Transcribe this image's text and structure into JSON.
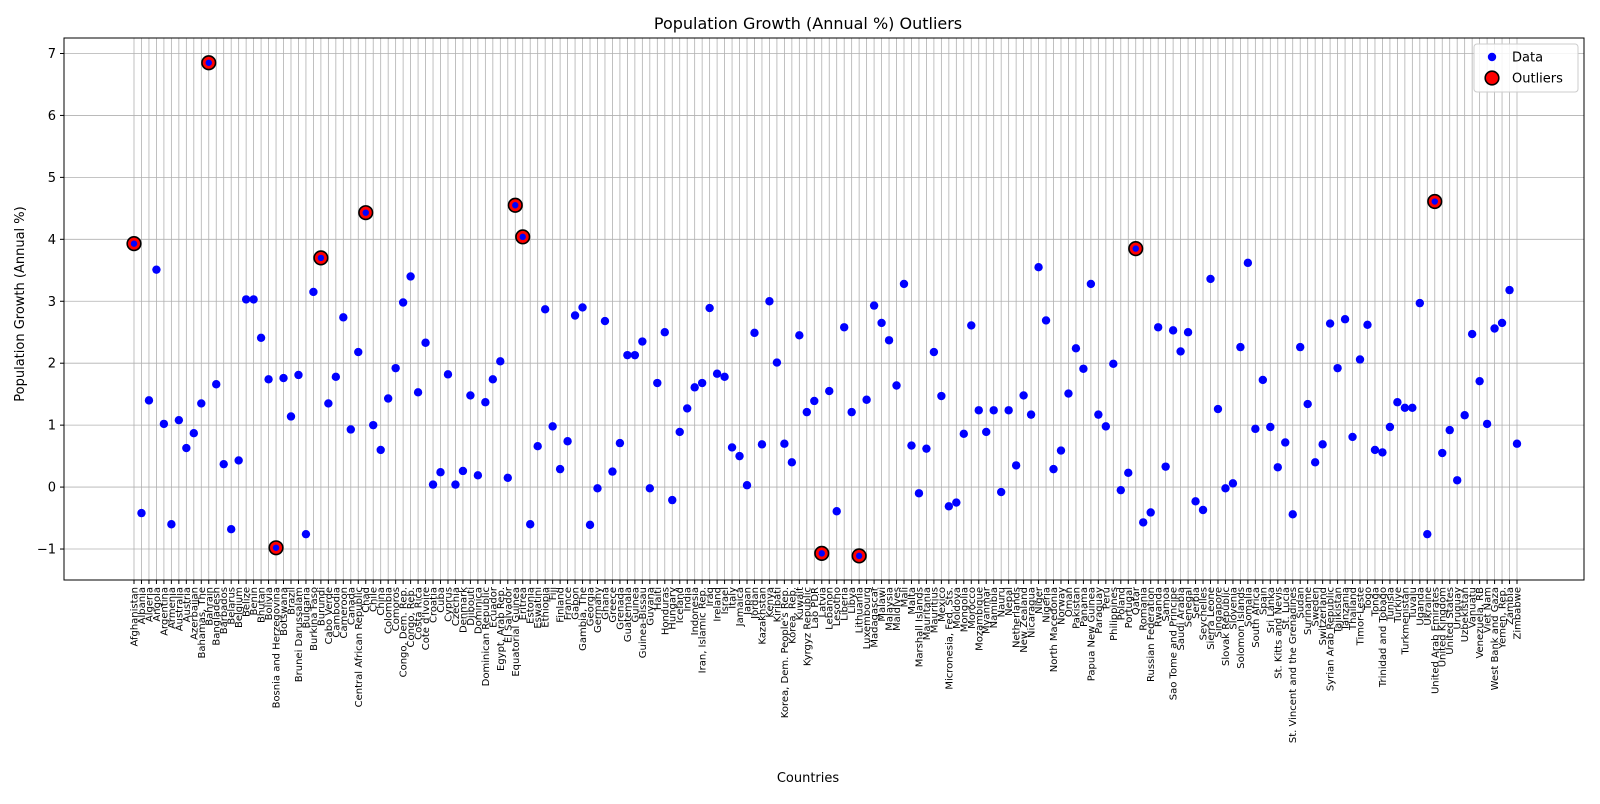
{
  "chart_data": {
    "type": "scatter",
    "title": "Population Growth (Annual %) Outliers",
    "xlabel": "Countries",
    "ylabel": "Population Growth (Annual %)",
    "ylim": [
      -1.5,
      7.25
    ],
    "yticks": [
      -1,
      0,
      1,
      2,
      3,
      4,
      5,
      6,
      7
    ],
    "ytick_labels": [
      "−1",
      "0",
      "1",
      "2",
      "3",
      "4",
      "5",
      "6",
      "7"
    ],
    "grid": true,
    "legend_position": "top-right",
    "legend": [
      "Data",
      "Outliers"
    ],
    "categories": [
      "Afghanistan",
      "Albania",
      "Algeria",
      "Angola",
      "Argentina",
      "Armenia",
      "Australia",
      "Austria",
      "Azerbaijan",
      "Bahamas, The",
      "Bahrain",
      "Bangladesh",
      "Barbados",
      "Belarus",
      "Belgium",
      "Belize",
      "Benin",
      "Bhutan",
      "Bolivia",
      "Bosnia and Herzegovina",
      "Botswana",
      "Brazil",
      "Brunei Darussalam",
      "Bulgaria",
      "Burkina Faso",
      "Burundi",
      "Cabo Verde",
      "Cambodia",
      "Cameroon",
      "Canada",
      "Central African Republic",
      "Chad",
      "Chile",
      "China",
      "Colombia",
      "Comoros",
      "Congo, Dem. Rep.",
      "Congo, Rep.",
      "Costa Rica",
      "Cote d'Ivoire",
      "Croatia",
      "Cuba",
      "Cyprus",
      "Czechia",
      "Denmark",
      "Djibouti",
      "Dominica",
      "Dominican Republic",
      "Ecuador",
      "Egypt, Arab Rep.",
      "El Salvador",
      "Equatorial Guinea",
      "Eritrea",
      "Estonia",
      "Eswatini",
      "Ethiopia",
      "Fiji",
      "Finland",
      "France",
      "Gabon",
      "Gambia, The",
      "Georgia",
      "Germany",
      "Ghana",
      "Greece",
      "Grenada",
      "Guatemala",
      "Guinea",
      "Guinea-Bissau",
      "Guyana",
      "Haiti",
      "Honduras",
      "Hungary",
      "Iceland",
      "India",
      "Indonesia",
      "Iran, Islamic Rep.",
      "Iraq",
      "Ireland",
      "Israel",
      "Italy",
      "Jamaica",
      "Japan",
      "Jordan",
      "Kazakhstan",
      "Kenya",
      "Kiribati",
      "Korea, Dem. People's Rep.",
      "Korea, Rep.",
      "Kuwait",
      "Kyrgyz Republic",
      "Lao PDR",
      "Latvia",
      "Lebanon",
      "Lesotho",
      "Liberia",
      "Libya",
      "Lithuania",
      "Luxembourg",
      "Madagascar",
      "Malawi",
      "Malaysia",
      "Maldives",
      "Mali",
      "Malta",
      "Marshall Islands",
      "Mauritania",
      "Mauritius",
      "Mexico",
      "Micronesia, Fed. Sts.",
      "Moldova",
      "Mongolia",
      "Morocco",
      "Mozambique",
      "Myanmar",
      "Namibia",
      "Nauru",
      "Nepal",
      "Netherlands",
      "New Zealand",
      "Nicaragua",
      "Niger",
      "Nigeria",
      "North Macedonia",
      "Norway",
      "Oman",
      "Pakistan",
      "Panama",
      "Papua New Guinea",
      "Paraguay",
      "Peru",
      "Philippines",
      "Poland",
      "Portugal",
      "Qatar",
      "Romania",
      "Russian Federation",
      "Rwanda",
      "Samoa",
      "Sao Tome and Principe",
      "Saudi Arabia",
      "Senegal",
      "Serbia",
      "Seychelles",
      "Sierra Leone",
      "Singapore",
      "Slovak Republic",
      "Slovenia",
      "Solomon Islands",
      "Somalia",
      "South Africa",
      "Spain",
      "Sri Lanka",
      "St. Kitts and Nevis",
      "St. Lucia",
      "St. Vincent and the Grenadines",
      "Sudan",
      "Suriname",
      "Sweden",
      "Switzerland",
      "Syrian Arab Republic",
      "Tajikistan",
      "Tanzania",
      "Thailand",
      "Timor-Leste",
      "Togo",
      "Tonga",
      "Trinidad and Tobago",
      "Tunisia",
      "Turkiye",
      "Turkmenistan",
      "Tuvalu",
      "Uganda",
      "Ukraine",
      "United Arab Emirates",
      "United Kingdom",
      "United States",
      "Uruguay",
      "Uzbekistan",
      "Vanuatu",
      "Venezuela, RB",
      "Viet Nam",
      "West Bank and Gaza",
      "Yemen, Rep.",
      "Zambia",
      "Zimbabwe"
    ],
    "series": [
      {
        "name": "Data",
        "color": "#0000ff",
        "values": [
          3.93,
          -0.42,
          1.4,
          3.51,
          1.02,
          -0.6,
          1.08,
          0.63,
          0.87,
          1.35,
          6.85,
          1.66,
          0.37,
          -0.68,
          0.43,
          3.03,
          3.03,
          2.41,
          1.74,
          -0.98,
          1.76,
          1.14,
          1.81,
          -0.76,
          3.15,
          3.7,
          1.35,
          1.78,
          2.74,
          0.93,
          2.18,
          4.43,
          1.0,
          0.6,
          1.43,
          1.92,
          2.98,
          3.4,
          1.53,
          2.33,
          0.04,
          0.24,
          1.82,
          0.04,
          0.26,
          1.48,
          0.19,
          1.37,
          1.74,
          2.03,
          0.15,
          4.55,
          4.04,
          -0.6,
          0.66,
          2.87,
          0.98,
          0.29,
          0.74,
          2.77,
          2.9,
          -0.61,
          -0.02,
          2.68,
          0.25,
          0.71,
          2.13,
          2.13,
          2.35,
          -0.02,
          1.68,
          2.5,
          -0.21,
          0.89,
          1.27,
          1.61,
          1.68,
          2.89,
          1.83,
          1.78,
          0.64,
          0.5,
          0.03,
          2.49,
          0.69,
          3.0,
          2.01,
          0.7,
          0.4,
          2.45,
          1.21,
          1.39,
          -1.07,
          1.55,
          -0.39,
          2.58,
          1.21,
          -1.11,
          1.41,
          2.93,
          2.65,
          2.37,
          1.64,
          3.28,
          0.67,
          -0.1,
          0.62,
          2.18,
          1.47,
          -0.31,
          -0.25,
          0.86,
          2.61,
          1.24,
          0.89,
          1.24,
          -0.08,
          1.24,
          0.35,
          1.48,
          1.17,
          3.55,
          2.69,
          0.29,
          0.59,
          1.51,
          2.24,
          1.91,
          3.28,
          1.17,
          0.98,
          1.99,
          -0.05,
          0.23,
          3.85,
          -0.57,
          -0.41,
          2.58,
          0.33,
          2.53,
          2.19,
          2.5,
          -0.23,
          -0.37,
          3.36,
          1.26,
          -0.02,
          0.06,
          2.26,
          3.62,
          0.94,
          1.73,
          0.97,
          0.32,
          0.72,
          -0.44,
          2.26,
          1.34,
          0.4,
          0.69,
          2.64,
          1.92,
          2.71,
          0.81,
          2.06,
          2.62,
          0.6,
          0.56,
          0.97,
          1.37,
          1.28,
          1.28,
          2.97,
          -0.76,
          4.61,
          0.55,
          0.92,
          0.11,
          1.16,
          2.47,
          1.71,
          1.02,
          2.56,
          2.65,
          3.18,
          0.7
        ]
      },
      {
        "name": "Outliers",
        "color": "#ff0000",
        "categories": [
          "Afghanistan",
          "Bahrain",
          "Bosnia and Herzegovina",
          "Burundi",
          "Chad",
          "Equatorial Guinea",
          "Eritrea",
          "Latvia",
          "Lithuania",
          "Qatar",
          "United Arab Emirates"
        ],
        "values": [
          3.93,
          6.85,
          -0.98,
          3.7,
          4.43,
          4.55,
          4.04,
          -1.07,
          -1.11,
          3.85,
          4.61
        ]
      }
    ]
  }
}
